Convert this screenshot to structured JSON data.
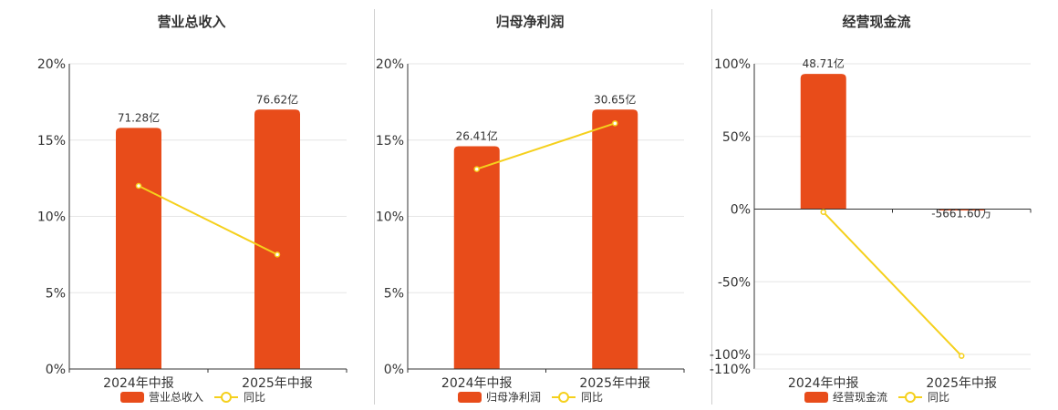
{
  "chart_data": [
    {
      "type": "bar",
      "title": "营业总收入",
      "categories": [
        "2024年中报",
        "2025年中报"
      ],
      "series": [
        {
          "name": "营业总收入",
          "type": "bar",
          "values": [
            15.8,
            17.0
          ],
          "labels": [
            "71.28亿",
            "76.62亿"
          ]
        },
        {
          "name": "同比",
          "type": "line",
          "values": [
            12.0,
            7.5
          ]
        }
      ],
      "yticks": [
        "0%",
        "5%",
        "10%",
        "15%",
        "20%"
      ],
      "yticks_values": [
        0,
        5,
        10,
        15,
        20
      ],
      "ylim": [
        0,
        20
      ],
      "grid": true,
      "legend": "bottom",
      "colors": {
        "bar": "#e84c1a",
        "line": "#f5d01c"
      }
    },
    {
      "type": "bar",
      "title": "归母净利润",
      "categories": [
        "2024年中报",
        "2025年中报"
      ],
      "series": [
        {
          "name": "归母净利润",
          "type": "bar",
          "values": [
            14.6,
            17.0
          ],
          "labels": [
            "26.41亿",
            "30.65亿"
          ]
        },
        {
          "name": "同比",
          "type": "line",
          "values": [
            13.1,
            16.1
          ]
        }
      ],
      "yticks": [
        "0%",
        "5%",
        "10%",
        "15%",
        "20%"
      ],
      "yticks_values": [
        0,
        5,
        10,
        15,
        20
      ],
      "ylim": [
        0,
        20
      ],
      "grid": true,
      "legend": "bottom",
      "colors": {
        "bar": "#e84c1a",
        "line": "#f5d01c"
      }
    },
    {
      "type": "bar",
      "title": "经营现金流",
      "categories": [
        "2024年中报",
        "2025年中报"
      ],
      "series": [
        {
          "name": "经营现金流",
          "type": "bar",
          "values": [
            93.0,
            -0.5
          ],
          "labels": [
            "48.71亿",
            "-5661.60万"
          ]
        },
        {
          "name": "同比",
          "type": "line",
          "values": [
            -2.0,
            -101.0
          ]
        }
      ],
      "yticks": [
        "-110%",
        "-100%",
        "-50%",
        "0%",
        "50%",
        "100%"
      ],
      "yticks_values": [
        -110,
        -100,
        -50,
        0,
        50,
        100
      ],
      "ylim": [
        -110,
        100
      ],
      "grid": true,
      "legend": "bottom",
      "colors": {
        "bar": "#e84c1a",
        "line": "#f5d01c"
      }
    }
  ]
}
